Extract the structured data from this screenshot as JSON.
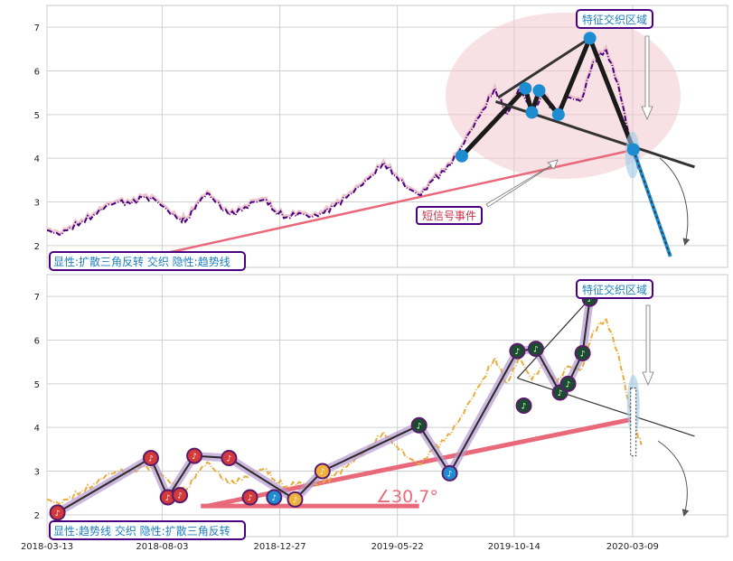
{
  "chart_data": [
    {
      "type": "line",
      "panel": "top",
      "ylim": [
        1.5,
        7.5
      ],
      "y_ticks": [
        "2",
        "3",
        "4",
        "5",
        "6",
        "7"
      ],
      "x_range": [
        "2018-03-13",
        "2020-07-05"
      ],
      "grid": true,
      "legend": "none",
      "series": [
        {
          "style": "dash-dot",
          "color": "#4b0082",
          "x": [
            "2018-03-13",
            "2018-03-28",
            "2018-04-10",
            "2018-04-25",
            "2018-05-10",
            "2018-05-25",
            "2018-06-10",
            "2018-06-25",
            "2018-07-10",
            "2018-07-25",
            "2018-08-10",
            "2018-08-25",
            "2018-09-03",
            "2018-09-15",
            "2018-09-28",
            "2018-10-08",
            "2018-10-25",
            "2018-11-10",
            "2018-11-25",
            "2018-12-10",
            "2018-12-20",
            "2019-01-05",
            "2019-01-20",
            "2019-02-05",
            "2019-02-20",
            "2019-03-05",
            "2019-03-20",
            "2019-04-05",
            "2019-04-20",
            "2019-05-05",
            "2019-05-20",
            "2019-06-05",
            "2019-06-20",
            "2019-07-05",
            "2019-07-20",
            "2019-08-05",
            "2019-08-20",
            "2019-09-05",
            "2019-09-20",
            "2019-10-05",
            "2019-10-20",
            "2019-11-05",
            "2019-11-20",
            "2019-12-05",
            "2019-12-20",
            "2020-01-05",
            "2020-01-20",
            "2020-02-05",
            "2020-02-20",
            "2020-03-05",
            "2020-03-12",
            "2020-03-20"
          ],
          "values": [
            2.35,
            2.25,
            2.4,
            2.55,
            2.7,
            2.9,
            3.0,
            2.95,
            3.1,
            3.05,
            2.8,
            2.6,
            2.6,
            2.95,
            3.2,
            3.0,
            2.7,
            2.8,
            3.0,
            3.05,
            2.8,
            2.65,
            2.75,
            2.65,
            2.75,
            2.9,
            3.1,
            3.35,
            3.6,
            3.9,
            3.6,
            3.3,
            3.15,
            3.5,
            3.7,
            4.1,
            4.6,
            5.1,
            5.6,
            5.0,
            5.6,
            5.1,
            5.45,
            5.0,
            5.4,
            5.3,
            6.2,
            6.5,
            5.7,
            4.5,
            4.0,
            3.6
          ]
        }
      ],
      "markers": {
        "x": [
          "2019-08-10",
          "2019-10-28",
          "2019-11-14",
          "2019-11-05",
          "2019-12-08",
          "2020-01-16",
          "2020-03-10"
        ],
        "y": [
          4.05,
          5.6,
          5.55,
          5.05,
          5.0,
          6.75,
          4.2
        ]
      },
      "annotations": [
        "特征交织区域",
        "短信号事件",
        "显性:扩散三角反转 交织 隐性:趋势线"
      ]
    },
    {
      "type": "line",
      "panel": "bottom",
      "ylim": [
        1.5,
        7.5
      ],
      "y_ticks": [
        "2",
        "3",
        "4",
        "5",
        "6",
        "7"
      ],
      "x_ticks": [
        "2018-03-13",
        "2018-08-03",
        "2018-12-27",
        "2019-05-22",
        "2019-10-14",
        "2020-03-09"
      ],
      "grid": true,
      "legend": "none",
      "series": [
        {
          "style": "dash-dot",
          "color": "#e8ad3c",
          "x": [
            "2018-03-13",
            "2018-03-28",
            "2018-04-10",
            "2018-04-25",
            "2018-05-10",
            "2018-05-25",
            "2018-06-10",
            "2018-06-25",
            "2018-07-10",
            "2018-07-25",
            "2018-08-10",
            "2018-08-25",
            "2018-09-03",
            "2018-09-15",
            "2018-09-28",
            "2018-10-08",
            "2018-10-25",
            "2018-11-10",
            "2018-11-25",
            "2018-12-10",
            "2018-12-20",
            "2019-01-05",
            "2019-01-20",
            "2019-02-05",
            "2019-02-20",
            "2019-03-05",
            "2019-03-20",
            "2019-04-05",
            "2019-04-20",
            "2019-05-05",
            "2019-05-20",
            "2019-06-05",
            "2019-06-20",
            "2019-07-05",
            "2019-07-20",
            "2019-08-05",
            "2019-08-20",
            "2019-09-05",
            "2019-09-20",
            "2019-10-05",
            "2019-10-20",
            "2019-11-05",
            "2019-11-20",
            "2019-12-05",
            "2019-12-20",
            "2020-01-05",
            "2020-01-20",
            "2020-02-05",
            "2020-02-20",
            "2020-03-05",
            "2020-03-12",
            "2020-03-20"
          ],
          "values": [
            2.35,
            2.25,
            2.4,
            2.55,
            2.7,
            2.9,
            3.0,
            2.95,
            3.1,
            3.05,
            2.8,
            2.6,
            2.6,
            2.95,
            3.2,
            3.0,
            2.7,
            2.8,
            3.0,
            3.05,
            2.8,
            2.65,
            2.75,
            2.65,
            2.75,
            2.9,
            3.1,
            3.35,
            3.6,
            3.9,
            3.6,
            3.3,
            3.15,
            3.5,
            3.7,
            4.1,
            4.6,
            5.1,
            5.6,
            5.0,
            5.6,
            5.1,
            5.45,
            5.0,
            5.4,
            5.3,
            6.2,
            6.5,
            5.7,
            4.5,
            4.0,
            3.6
          ]
        }
      ],
      "markers": {
        "x": [
          "2018-03-26",
          "2018-07-20",
          "2018-08-10",
          "2018-08-25",
          "2018-09-12",
          "2018-10-25",
          "2018-11-20",
          "2018-12-20",
          "2019-01-15",
          "2019-02-18",
          "2019-06-18",
          "2019-07-26",
          "2019-10-18",
          "2019-10-26",
          "2019-11-10",
          "2019-12-10",
          "2019-12-20",
          "2020-01-07",
          "2020-01-16"
        ],
        "y": [
          2.05,
          3.3,
          2.4,
          2.45,
          3.35,
          3.3,
          2.4,
          2.4,
          2.35,
          3.0,
          4.05,
          2.95,
          5.75,
          4.5,
          5.8,
          4.8,
          5.0,
          5.7,
          6.95
        ]
      },
      "annotations": [
        "特征交织区域",
        "∠30.7°",
        "显性:趋势线 交织 隐性:扩散三角反转"
      ]
    }
  ],
  "colors": {
    "top_series": "#4b0082",
    "bottom_series": "#e8ad3c",
    "trend_line": "#e8697a",
    "marker_blue": "#1e8cd0",
    "marker_purple": "#5a1a6b",
    "box_border": "#4b0082",
    "box_text": "#1f7fbf",
    "ellipse_fill": "#f2c4cc"
  },
  "icons": [
    "note-icon",
    "arrow-icon"
  ]
}
